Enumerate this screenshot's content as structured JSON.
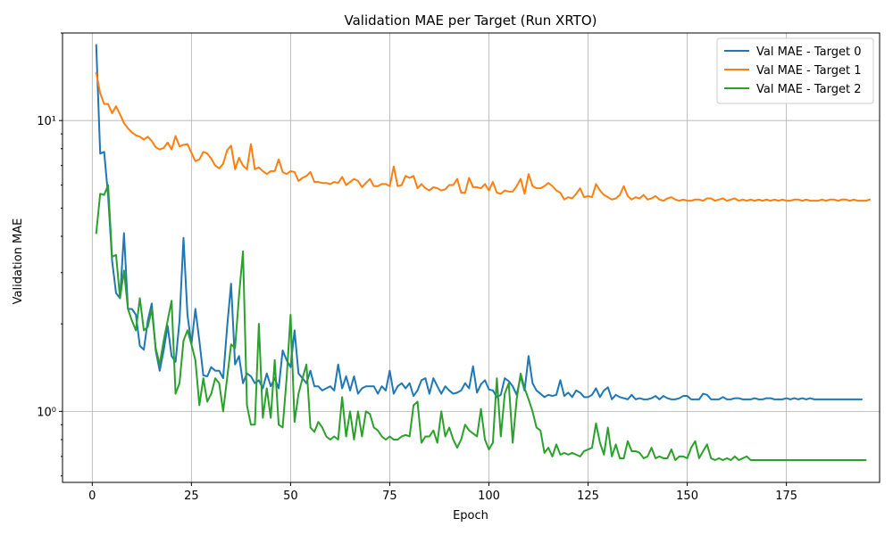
{
  "chart_data": {
    "type": "line",
    "title": "Validation MAE per Target (Run XRTO)",
    "xlabel": "Epoch",
    "ylabel": "Validation MAE",
    "yscale": "log",
    "xlim": [
      -7.5,
      198.5
    ],
    "ylim": [
      0.57,
      20
    ],
    "x_ticks": [
      0,
      25,
      50,
      75,
      100,
      125,
      150,
      175
    ],
    "x_tick_labels": [
      "0",
      "25",
      "50",
      "75",
      "100",
      "125",
      "150",
      "175"
    ],
    "y_major_ticks": [
      1,
      10
    ],
    "y_tick_labels": [
      "10⁰",
      "10¹"
    ],
    "grid": true,
    "legend_position": "top-right",
    "colors": [
      "#1f77b4",
      "#ff7f0e",
      "#2ca02c"
    ],
    "x_start": 1,
    "series": [
      {
        "name": "Val MAE - Target 0",
        "color": "#1f77b4",
        "values": [
          18.2,
          7.7,
          7.8,
          5.5,
          3.3,
          2.55,
          2.45,
          4.1,
          2.25,
          2.25,
          2.15,
          1.68,
          1.63,
          2.05,
          2.35,
          1.62,
          1.38,
          1.62,
          1.97,
          1.55,
          1.48,
          2.05,
          3.95,
          2.15,
          1.7,
          2.25,
          1.75,
          1.33,
          1.32,
          1.42,
          1.38,
          1.38,
          1.3,
          1.95,
          2.75,
          1.45,
          1.55,
          1.25,
          1.35,
          1.32,
          1.25,
          1.28,
          1.2,
          1.35,
          1.22,
          1.3,
          1.2,
          1.62,
          1.5,
          1.42,
          1.9,
          1.35,
          1.3,
          1.25,
          1.38,
          1.22,
          1.22,
          1.18,
          1.2,
          1.22,
          1.18,
          1.45,
          1.2,
          1.32,
          1.18,
          1.32,
          1.15,
          1.2,
          1.22,
          1.22,
          1.22,
          1.15,
          1.22,
          1.18,
          1.38,
          1.15,
          1.22,
          1.25,
          1.2,
          1.25,
          1.13,
          1.18,
          1.28,
          1.3,
          1.15,
          1.3,
          1.22,
          1.15,
          1.22,
          1.18,
          1.15,
          1.16,
          1.18,
          1.25,
          1.2,
          1.43,
          1.16,
          1.24,
          1.28,
          1.19,
          1.18,
          1.12,
          1.14,
          1.3,
          1.27,
          1.22,
          1.14,
          1.32,
          1.18,
          1.55,
          1.25,
          1.18,
          1.15,
          1.12,
          1.14,
          1.13,
          1.14,
          1.28,
          1.13,
          1.16,
          1.12,
          1.18,
          1.16,
          1.12,
          1.12,
          1.14,
          1.2,
          1.12,
          1.18,
          1.21,
          1.1,
          1.14,
          1.12,
          1.11,
          1.1,
          1.14,
          1.1,
          1.11,
          1.1,
          1.1,
          1.11,
          1.13,
          1.1,
          1.13,
          1.11,
          1.1,
          1.1,
          1.11,
          1.13,
          1.13,
          1.1,
          1.1,
          1.1,
          1.15,
          1.14,
          1.1,
          1.1,
          1.1,
          1.12,
          1.1,
          1.1,
          1.11,
          1.11,
          1.1,
          1.1,
          1.1,
          1.11,
          1.1,
          1.1,
          1.11,
          1.11,
          1.1,
          1.1,
          1.1,
          1.11,
          1.1,
          1.11,
          1.1,
          1.11,
          1.1,
          1.11,
          1.1,
          1.1,
          1.1,
          1.1,
          1.1,
          1.1,
          1.1,
          1.1,
          1.1,
          1.1,
          1.1,
          1.1,
          1.1
        ]
      },
      {
        "name": "Val MAE - Target 1",
        "color": "#ff7f0e",
        "values": [
          14.6,
          12.4,
          11.4,
          11.4,
          10.6,
          11.2,
          10.5,
          9.8,
          9.4,
          9.1,
          8.9,
          8.8,
          8.6,
          8.8,
          8.5,
          8.1,
          7.95,
          8.05,
          8.4,
          7.95,
          8.85,
          8.15,
          8.25,
          8.3,
          7.75,
          7.25,
          7.35,
          7.8,
          7.7,
          7.4,
          7.0,
          6.85,
          7.1,
          7.9,
          8.2,
          6.8,
          7.45,
          7.0,
          6.8,
          8.3,
          6.8,
          6.9,
          6.7,
          6.55,
          6.7,
          6.7,
          7.35,
          6.65,
          6.55,
          6.7,
          6.65,
          6.2,
          6.35,
          6.45,
          6.65,
          6.15,
          6.15,
          6.1,
          6.1,
          6.05,
          6.15,
          6.1,
          6.4,
          6.0,
          6.15,
          6.3,
          6.2,
          5.9,
          6.1,
          6.3,
          5.95,
          5.95,
          6.05,
          6.05,
          5.95,
          6.95,
          5.95,
          6.0,
          6.45,
          6.35,
          6.45,
          5.85,
          6.05,
          5.85,
          5.75,
          5.9,
          5.85,
          5.75,
          5.8,
          6.0,
          6.0,
          6.3,
          5.65,
          5.65,
          6.35,
          5.9,
          5.9,
          5.85,
          6.05,
          5.75,
          6.15,
          5.65,
          5.6,
          5.75,
          5.7,
          5.7,
          5.95,
          6.3,
          5.6,
          6.55,
          5.95,
          5.85,
          5.85,
          5.95,
          6.1,
          5.95,
          5.75,
          5.65,
          5.35,
          5.45,
          5.4,
          5.6,
          5.85,
          5.45,
          5.5,
          5.45,
          6.05,
          5.75,
          5.55,
          5.45,
          5.35,
          5.4,
          5.55,
          5.95,
          5.5,
          5.35,
          5.45,
          5.4,
          5.55,
          5.35,
          5.4,
          5.5,
          5.35,
          5.3,
          5.4,
          5.45,
          5.35,
          5.3,
          5.35,
          5.3,
          5.3,
          5.35,
          5.35,
          5.3,
          5.4,
          5.4,
          5.3,
          5.35,
          5.4,
          5.3,
          5.35,
          5.4,
          5.3,
          5.35,
          5.3,
          5.35,
          5.3,
          5.35,
          5.3,
          5.35,
          5.3,
          5.35,
          5.3,
          5.35,
          5.3,
          5.3,
          5.35,
          5.35,
          5.3,
          5.35,
          5.3,
          5.3,
          5.3,
          5.35,
          5.3,
          5.35,
          5.35,
          5.3,
          5.35,
          5.35,
          5.3,
          5.35,
          5.3,
          5.3,
          5.3,
          5.35
        ]
      },
      {
        "name": "Val MAE - Target 2",
        "color": "#2ca02c",
        "values": [
          4.1,
          5.6,
          5.55,
          6.0,
          3.4,
          3.45,
          2.45,
          3.05,
          2.25,
          2.05,
          1.9,
          2.45,
          1.9,
          1.95,
          2.25,
          1.65,
          1.45,
          1.75,
          2.05,
          2.4,
          1.15,
          1.25,
          1.75,
          1.9,
          1.7,
          1.5,
          1.05,
          1.3,
          1.08,
          1.15,
          1.3,
          1.25,
          1.0,
          1.3,
          1.7,
          1.65,
          2.5,
          3.55,
          1.05,
          0.9,
          0.9,
          2.0,
          0.95,
          1.2,
          0.95,
          1.5,
          0.9,
          0.88,
          1.3,
          2.15,
          0.92,
          1.15,
          1.3,
          1.45,
          0.88,
          0.85,
          0.92,
          0.88,
          0.82,
          0.8,
          0.82,
          0.8,
          1.12,
          0.82,
          1.0,
          0.8,
          1.0,
          0.82,
          1.0,
          0.98,
          0.88,
          0.86,
          0.82,
          0.8,
          0.82,
          0.8,
          0.8,
          0.82,
          0.83,
          0.82,
          1.05,
          1.08,
          0.78,
          0.82,
          0.82,
          0.86,
          0.78,
          1.0,
          0.82,
          0.88,
          0.8,
          0.75,
          0.8,
          0.9,
          0.86,
          0.84,
          0.82,
          1.02,
          0.8,
          0.74,
          0.78,
          1.3,
          0.82,
          1.15,
          1.25,
          0.78,
          1.1,
          1.35,
          1.2,
          1.1,
          1.0,
          0.88,
          0.86,
          0.72,
          0.75,
          0.7,
          0.77,
          0.71,
          0.72,
          0.71,
          0.72,
          0.71,
          0.7,
          0.73,
          0.74,
          0.75,
          0.91,
          0.78,
          0.71,
          0.88,
          0.7,
          0.77,
          0.69,
          0.69,
          0.79,
          0.73,
          0.73,
          0.72,
          0.69,
          0.7,
          0.75,
          0.69,
          0.7,
          0.69,
          0.69,
          0.74,
          0.68,
          0.7,
          0.7,
          0.69,
          0.75,
          0.79,
          0.69,
          0.73,
          0.77,
          0.69,
          0.68,
          0.69,
          0.68,
          0.69,
          0.68,
          0.7,
          0.68,
          0.69,
          0.7,
          0.68,
          0.68,
          0.68,
          0.68,
          0.68,
          0.68,
          0.68,
          0.68,
          0.68,
          0.68,
          0.68,
          0.68,
          0.68,
          0.68,
          0.68,
          0.68,
          0.68,
          0.68,
          0.68,
          0.68,
          0.68,
          0.68,
          0.68,
          0.68,
          0.68,
          0.68,
          0.68,
          0.68,
          0.68,
          0.68
        ]
      }
    ]
  }
}
